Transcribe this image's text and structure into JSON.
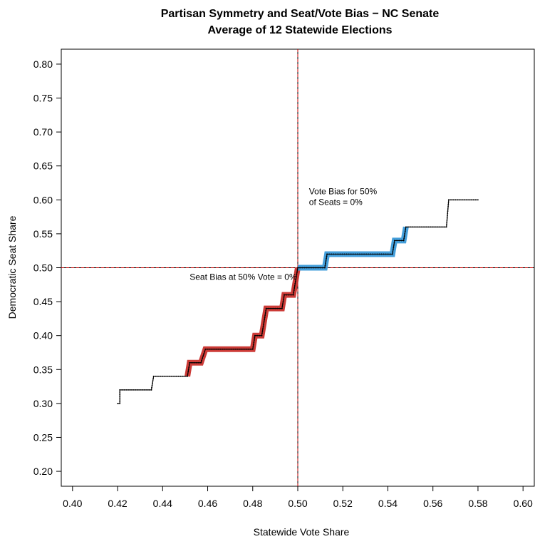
{
  "chart_data": {
    "type": "line",
    "title": "Partisan Symmetry and Seat/Vote Bias − NC Senate",
    "subtitle": "Average of 12 Statewide Elections",
    "xlabel": "Statewide Vote Share",
    "ylabel": "Democratic Seat Share",
    "xlim": [
      0.395,
      0.605
    ],
    "ylim": [
      0.178,
      0.822
    ],
    "x_ticks": [
      "0.40",
      "0.42",
      "0.44",
      "0.46",
      "0.48",
      "0.50",
      "0.52",
      "0.54",
      "0.56",
      "0.58",
      "0.60"
    ],
    "y_ticks": [
      "0.20",
      "0.25",
      "0.30",
      "0.35",
      "0.40",
      "0.45",
      "0.50",
      "0.55",
      "0.60",
      "0.65",
      "0.70",
      "0.75",
      "0.80"
    ],
    "reference_lines": {
      "x": 0.5,
      "y": 0.5,
      "color": "#cc0000",
      "style": "dashed"
    },
    "curve": [
      [
        0.42,
        0.3
      ],
      [
        0.421,
        0.3
      ],
      [
        0.421,
        0.32
      ],
      [
        0.435,
        0.32
      ],
      [
        0.436,
        0.34
      ],
      [
        0.451,
        0.34
      ],
      [
        0.452,
        0.36
      ],
      [
        0.457,
        0.36
      ],
      [
        0.459,
        0.38
      ],
      [
        0.48,
        0.38
      ],
      [
        0.481,
        0.4
      ],
      [
        0.484,
        0.4
      ],
      [
        0.486,
        0.44
      ],
      [
        0.493,
        0.44
      ],
      [
        0.494,
        0.46
      ],
      [
        0.498,
        0.46
      ],
      [
        0.5,
        0.5
      ],
      [
        0.512,
        0.5
      ],
      [
        0.513,
        0.52
      ],
      [
        0.542,
        0.52
      ],
      [
        0.543,
        0.54
      ],
      [
        0.547,
        0.54
      ],
      [
        0.548,
        0.56
      ],
      [
        0.566,
        0.56
      ],
      [
        0.567,
        0.6
      ],
      [
        0.58,
        0.6
      ]
    ],
    "highlight_red": {
      "color": "#c9302c",
      "x_range": [
        0.451,
        0.5
      ]
    },
    "highlight_blue": {
      "color": "#3a9ad9",
      "x_range": [
        0.5,
        0.548
      ]
    },
    "annotations": [
      {
        "lines": [
          "Vote Bias for 50%",
          "of Seats = 0%"
        ],
        "x": 0.505,
        "y": 0.608
      },
      {
        "lines": [
          "Seat Bias at 50% Vote = 0%"
        ],
        "x": 0.452,
        "y": 0.482
      }
    ]
  }
}
